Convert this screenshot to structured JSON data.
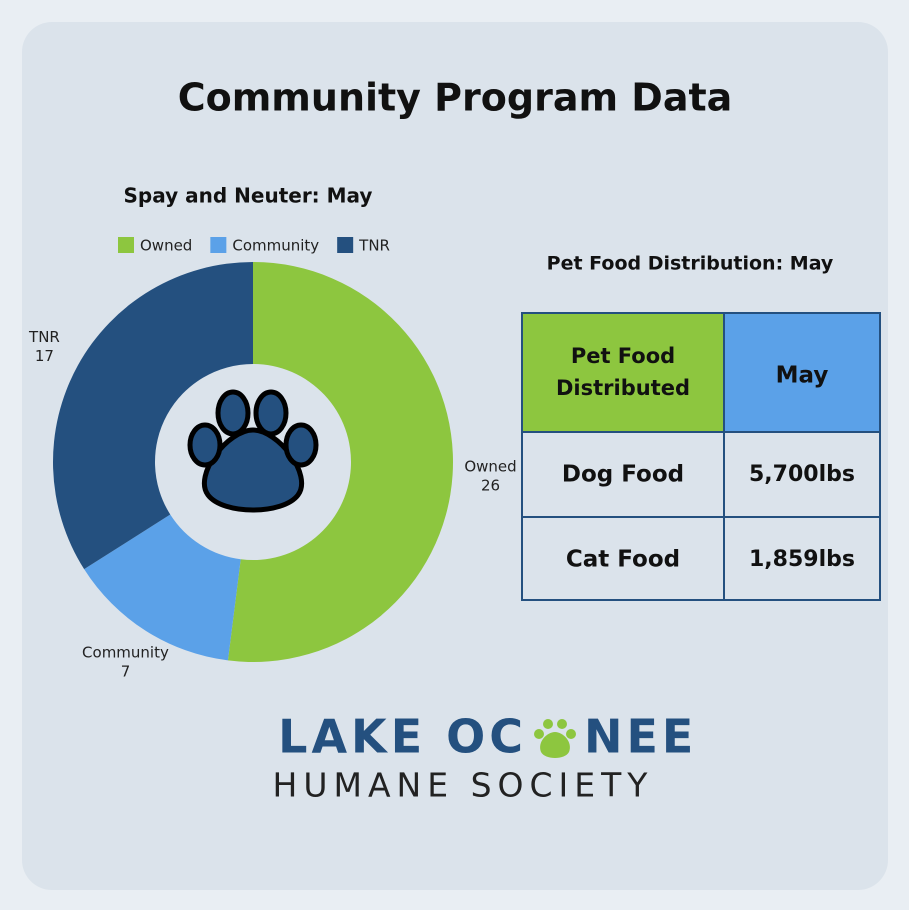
{
  "title": "Community Program Data",
  "chart_data": {
    "type": "donut",
    "title": "Spay and Neuter: May",
    "categories": [
      "Owned",
      "Community",
      "TNR"
    ],
    "values": [
      26,
      7,
      17
    ],
    "colors": [
      "#8dc63f",
      "#5ba1e8",
      "#24507f"
    ],
    "legend": "top"
  },
  "table": {
    "title": "Pet Food Distribution: May",
    "header": [
      "Pet Food Distributed",
      "May"
    ],
    "rows": [
      [
        "Dog Food",
        "5,700lbs"
      ],
      [
        "Cat Food",
        "1,859lbs"
      ]
    ]
  },
  "logo": {
    "line1_left": "LAKE OC",
    "line1_right": "NEE",
    "line2": "HUMANE SOCIETY"
  }
}
